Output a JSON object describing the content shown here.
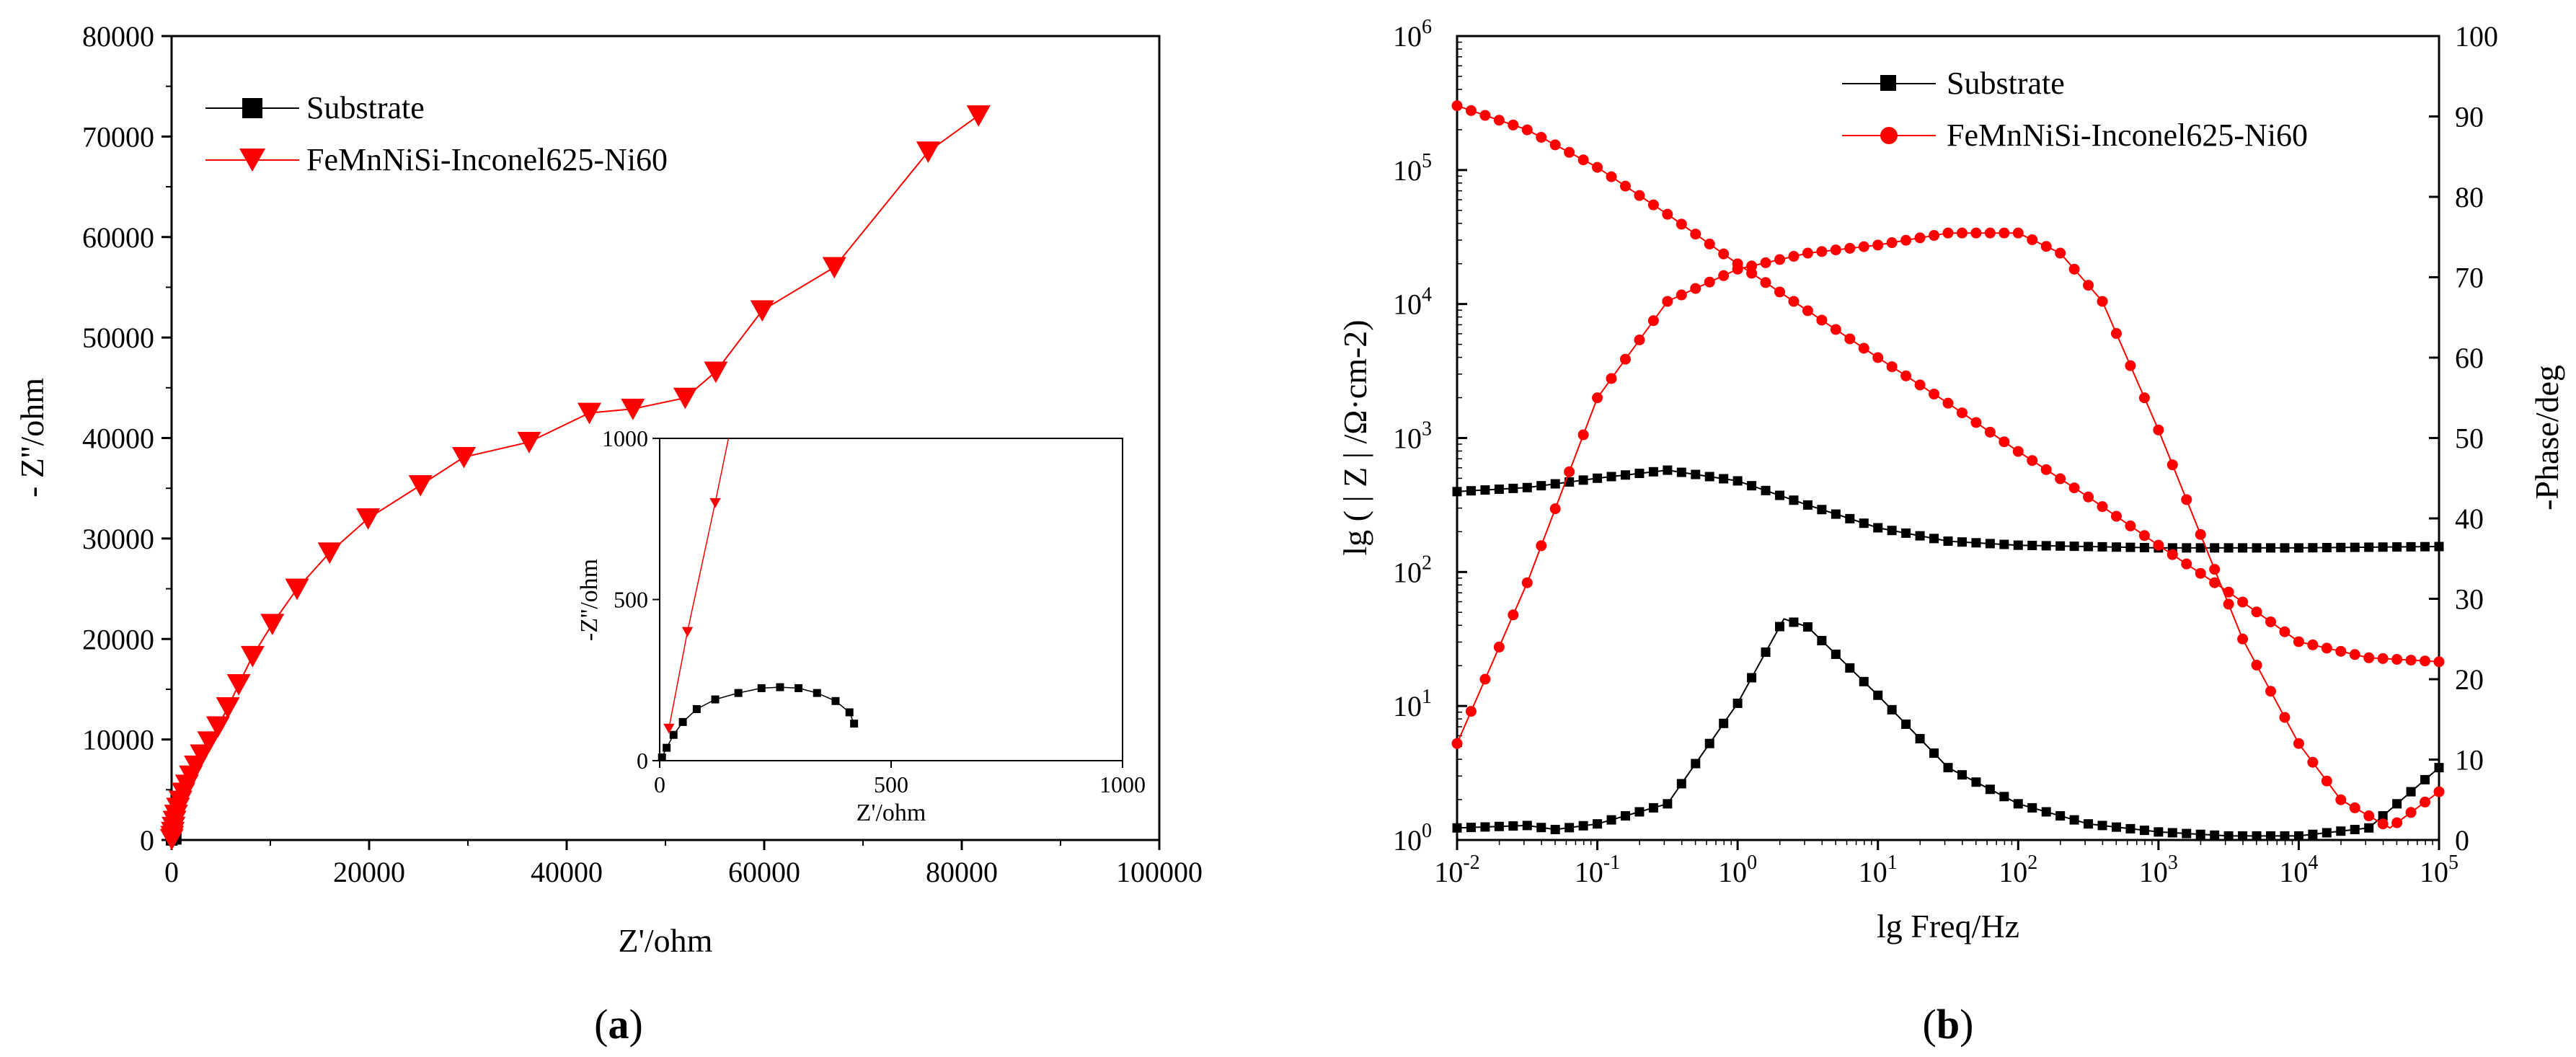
{
  "chart_data": [
    {
      "panel_label": "a",
      "type": "scatter",
      "title": "",
      "xlabel": "Z'/ohm",
      "ylabel": "- Z''/ohm",
      "xlim": [
        0,
        100000
      ],
      "ylim": [
        0,
        80000
      ],
      "xticks": [
        "0",
        "20000",
        "40000",
        "60000",
        "80000",
        "100000"
      ],
      "yticks": [
        "0",
        "10000",
        "20000",
        "30000",
        "40000",
        "50000",
        "60000",
        "70000",
        "80000"
      ],
      "legend": {
        "placement": "top-left",
        "entries": [
          "Substrate",
          "FeMnNiSi-Inconel625-Ni60"
        ]
      },
      "series": [
        {
          "name": "Substrate",
          "color": "#000000",
          "marker": "square",
          "x": [
            5,
            15,
            30,
            50,
            80,
            120,
            170,
            220,
            260,
            300,
            340,
            380,
            410,
            420
          ],
          "y": [
            10,
            40,
            80,
            120,
            160,
            190,
            210,
            225,
            228,
            225,
            210,
            185,
            150,
            115
          ]
        },
        {
          "name": "FeMnNiSi-Inconel625-Ni60",
          "color": "#ff0000",
          "marker": "triangle-down",
          "x": [
            20,
            60,
            120,
            200,
            300,
            450,
            650,
            900,
            1200,
            1550,
            1950,
            2450,
            3050,
            3800,
            4700,
            5700,
            6800,
            8200,
            10200,
            12700,
            16000,
            19900,
            25200,
            29600,
            36200,
            42300,
            46700,
            52000,
            55100,
            59800,
            67100,
            76600,
            81700
          ],
          "y": [
            100,
            400,
            800,
            1300,
            1900,
            2500,
            3200,
            3900,
            4700,
            5500,
            6400,
            7400,
            8500,
            9800,
            11300,
            13200,
            15500,
            18300,
            21500,
            25000,
            28600,
            32000,
            35300,
            38100,
            39600,
            42500,
            42900,
            44000,
            46600,
            52700,
            57000,
            68500,
            72100
          ]
        }
      ],
      "inset": {
        "xlabel": "Z'/ohm",
        "ylabel": "-Z''/ohm",
        "xlim": [
          0,
          1000
        ],
        "ylim": [
          0,
          1000
        ],
        "xticks": [
          "0",
          "500",
          "1000"
        ],
        "yticks": [
          "0",
          "500",
          "1000"
        ]
      }
    },
    {
      "panel_label": "b",
      "type": "line",
      "title": "",
      "xlabel": "lg Freq/Hz",
      "ylabel_left": "lg ( | Z | /Ω·cm-2)",
      "ylabel_right": "-Phase/deg",
      "xscale": "log",
      "xlim_exp": [
        -2,
        5
      ],
      "ylim_left_exp": [
        0,
        6
      ],
      "ylim_right": [
        0,
        100
      ],
      "xtick_exponents": [
        "-2",
        "-1",
        "0",
        "1",
        "2",
        "3",
        "4",
        "5"
      ],
      "ytick_left_exponents": [
        "0",
        "1",
        "2",
        "3",
        "4",
        "5",
        "6"
      ],
      "yticks_right": [
        "0",
        "10",
        "20",
        "30",
        "40",
        "50",
        "60",
        "70",
        "80",
        "90",
        "100"
      ],
      "legend": {
        "placement": "top-center",
        "entries": [
          "Substrate",
          "FeMnNiSi-Inconel625-Ni60"
        ]
      },
      "series": [
        {
          "name": "Substrate |Z|",
          "axis": "left",
          "color": "#000000",
          "marker": "square",
          "log_freq": [
            -2,
            -1.5,
            -1,
            -0.5,
            0,
            0.5,
            1,
            1.5,
            2,
            3,
            4,
            5
          ],
          "log_z": [
            2.6,
            2.63,
            2.7,
            2.76,
            2.68,
            2.5,
            2.33,
            2.23,
            2.2,
            2.18,
            2.18,
            2.19
          ]
        },
        {
          "name": "Substrate phase",
          "axis": "right",
          "color": "#000000",
          "marker": "square",
          "log_freq": [
            -2,
            -1.5,
            -1.3,
            -1,
            -0.5,
            0,
            0.33,
            0.5,
            1,
            1.5,
            2,
            2.5,
            3,
            3.5,
            4,
            4.5,
            5
          ],
          "phase": [
            1.5,
            1.8,
            1.3,
            2.0,
            4.5,
            17,
            27.5,
            26.5,
            18,
            9,
            4.5,
            2.0,
            1.0,
            0.5,
            0.5,
            1.5,
            9
          ]
        },
        {
          "name": "FeMnNiSi-Inconel625-Ni60 |Z|",
          "axis": "left",
          "color": "#ff0000",
          "marker": "circle",
          "log_freq": [
            -2,
            -1.5,
            -1,
            -0.5,
            0,
            0.5,
            1,
            1.5,
            2,
            2.5,
            3,
            3.5,
            4,
            4.5,
            5
          ],
          "log_z": [
            5.48,
            5.3,
            5.02,
            4.67,
            4.3,
            3.95,
            3.6,
            3.26,
            2.9,
            2.56,
            2.2,
            1.85,
            1.48,
            1.36,
            1.33
          ]
        },
        {
          "name": "FeMnNiSi-Inconel625-Ni60 phase",
          "axis": "right",
          "color": "#ff0000",
          "marker": "circle",
          "log_freq": [
            -2,
            -1.5,
            -1,
            -0.5,
            0,
            0.5,
            1,
            1.5,
            2,
            2.3,
            2.6,
            3,
            3.3,
            3.6,
            4,
            4.3,
            4.65,
            5
          ],
          "phase": [
            12,
            32,
            55,
            67,
            71,
            73,
            74,
            75.5,
            75.5,
            73,
            67,
            51,
            38,
            25,
            12,
            5,
            1.5,
            6
          ]
        }
      ]
    }
  ]
}
